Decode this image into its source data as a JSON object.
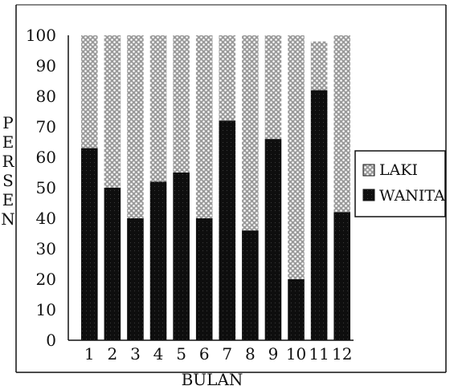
{
  "chart_data": {
    "type": "bar",
    "stacked": true,
    "xlabel": "BULAN",
    "ylabel": "PERSEN",
    "ylim": [
      0,
      100
    ],
    "yticks": [
      0,
      10,
      20,
      30,
      40,
      50,
      60,
      70,
      80,
      90,
      100
    ],
    "categories": [
      "1",
      "2",
      "3",
      "4",
      "5",
      "6",
      "7",
      "8",
      "9",
      "10",
      "11",
      "12"
    ],
    "series": [
      {
        "name": "WANITA",
        "values": [
          63,
          50,
          40,
          52,
          55,
          40,
          72,
          36,
          66,
          20,
          82,
          42
        ]
      },
      {
        "name": "LAKI",
        "values": [
          37,
          50,
          60,
          48,
          45,
          60,
          28,
          64,
          34,
          80,
          16,
          58
        ]
      }
    ],
    "legend": {
      "position": "right",
      "entries": [
        "LAKI",
        "WANITA"
      ]
    },
    "grid": false,
    "colors": {
      "WANITA": "#111111",
      "LAKI": "#8a8a8a"
    }
  }
}
